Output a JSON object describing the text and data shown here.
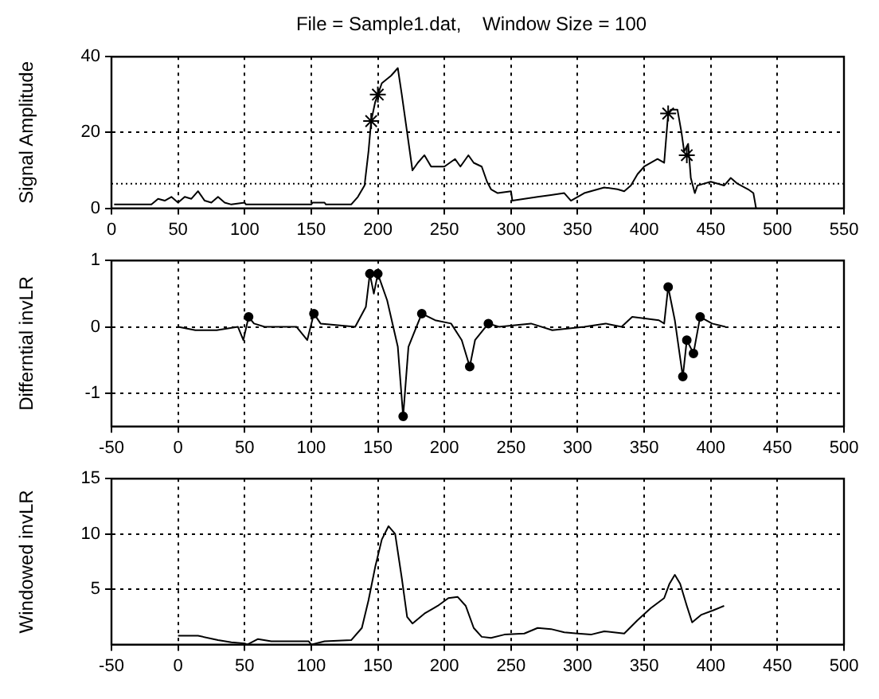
{
  "chart_data": [
    {
      "type": "line",
      "title": "File = Sample1.dat,    Window Size = 100",
      "ylabel": "Signal Amplitude",
      "xlim": [
        0,
        550
      ],
      "xticks": [
        0,
        50,
        100,
        150,
        200,
        250,
        300,
        350,
        400,
        450,
        500,
        550
      ],
      "ylim": [
        0,
        40
      ],
      "yticks": [
        0,
        20,
        40
      ],
      "grid": true,
      "legend": false,
      "ref_lines": [
        {
          "axis": "y",
          "value": 6.5,
          "color": "#000000",
          "line_style": "dotted"
        }
      ],
      "series": [
        {
          "color": "#000000",
          "marker": "none",
          "x": [
            2,
            30,
            35,
            40,
            45,
            50,
            55,
            60,
            65,
            70,
            75,
            80,
            85,
            90,
            100,
            101,
            150,
            151,
            160,
            161,
            180,
            185,
            190,
            193,
            195,
            198,
            200,
            203,
            210,
            215,
            218,
            222,
            226,
            230,
            235,
            240,
            250,
            258,
            262,
            268,
            272,
            278,
            282,
            285,
            290,
            300,
            301,
            310,
            320,
            330,
            340,
            345,
            350,
            355,
            370,
            380,
            385,
            390,
            395,
            400,
            405,
            410,
            415,
            418,
            420,
            425,
            428,
            430,
            433,
            435,
            438,
            440,
            445,
            450,
            460,
            465,
            470,
            478,
            482,
            484
          ],
          "values": [
            1,
            1,
            2.5,
            2,
            3,
            1.5,
            3,
            2.5,
            4.5,
            2,
            1.5,
            3,
            1.5,
            1,
            1.5,
            1,
            1,
            1.5,
            1.5,
            1,
            1,
            3,
            6,
            15,
            23,
            28,
            30,
            33,
            35,
            37,
            30,
            20,
            10,
            12,
            14,
            11,
            11,
            13,
            11,
            14,
            12,
            11,
            7,
            5,
            4,
            4.5,
            2,
            2.5,
            3,
            3.5,
            4,
            2,
            3,
            4,
            5.5,
            5,
            4.5,
            6,
            9,
            11,
            12,
            13,
            12,
            25,
            26,
            26,
            20,
            15,
            17,
            8,
            4,
            6,
            6.5,
            7,
            6,
            8,
            6.5,
            5,
            4,
            0
          ]
        },
        {
          "type": "scatter",
          "color": "#000000",
          "marker": "cross",
          "x": [
            195,
            200,
            418,
            432
          ],
          "values": [
            23,
            30,
            25,
            14
          ]
        }
      ]
    },
    {
      "type": "line",
      "ylabel": "Differntial invLR",
      "xlim": [
        -50,
        500
      ],
      "xticks": [
        -50,
        0,
        50,
        100,
        150,
        200,
        250,
        300,
        350,
        400,
        450,
        500
      ],
      "ylim": [
        -1.5,
        1
      ],
      "yticks": [
        -1,
        0,
        1
      ],
      "grid": true,
      "legend": false,
      "series": [
        {
          "color": "#000000",
          "marker": "none",
          "x": [
            0,
            13,
            29,
            45,
            49,
            53,
            57,
            65,
            89,
            97,
            102,
            107,
            133,
            141,
            144,
            147,
            150,
            157,
            165,
            169,
            173,
            177,
            183,
            193,
            205,
            213,
            219,
            223,
            233,
            241,
            265,
            281,
            305,
            321,
            333,
            341,
            361,
            365,
            368,
            373,
            379,
            382,
            387,
            392,
            401,
            411
          ],
          "values": [
            0,
            -0.05,
            -0.05,
            0,
            -0.2,
            0.15,
            0.05,
            0,
            0,
            -0.2,
            0.2,
            0.05,
            0,
            0.3,
            0.8,
            0.5,
            0.8,
            0.4,
            -0.3,
            -1.35,
            -0.3,
            -0.1,
            0.2,
            0.1,
            0.05,
            -0.2,
            -0.6,
            -0.2,
            0.05,
            0,
            0.05,
            -0.05,
            0,
            0.05,
            0,
            0.15,
            0.1,
            0.05,
            0.6,
            0.1,
            -0.75,
            -0.2,
            -0.4,
            0.15,
            0.05,
            0
          ]
        },
        {
          "type": "scatter",
          "color": "#000000",
          "marker": "circle",
          "x": [
            53,
            102,
            144,
            150,
            169,
            183,
            219,
            233,
            368,
            379,
            382,
            387,
            392
          ],
          "values": [
            0.15,
            0.2,
            0.8,
            0.8,
            -1.35,
            0.2,
            -0.6,
            0.05,
            0.6,
            -0.75,
            -0.2,
            -0.4,
            0.15
          ]
        }
      ]
    },
    {
      "type": "line",
      "ylabel": "Windowed invLR",
      "xlim": [
        -50,
        500
      ],
      "xticks": [
        -50,
        0,
        50,
        100,
        150,
        200,
        250,
        300,
        350,
        400,
        450,
        500
      ],
      "ylim": [
        0,
        15
      ],
      "yticks": [
        5,
        10,
        15
      ],
      "grid": true,
      "legend": false,
      "series": [
        {
          "color": "#000000",
          "marker": "none",
          "x": [
            0,
            15,
            30,
            40,
            50,
            52,
            60,
            70,
            98,
            100,
            110,
            130,
            138,
            143,
            148,
            153,
            158,
            163,
            168,
            172,
            176,
            185,
            195,
            203,
            210,
            216,
            222,
            228,
            235,
            245,
            260,
            270,
            280,
            290,
            300,
            310,
            320,
            335,
            345,
            355,
            365,
            369,
            373,
            377,
            382,
            386,
            393,
            402,
            410
          ],
          "values": [
            0.8,
            0.8,
            0.4,
            0.2,
            0.1,
            0,
            0.5,
            0.3,
            0.3,
            0,
            0.3,
            0.4,
            1.5,
            4,
            7,
            9.5,
            10.7,
            10,
            6,
            2.5,
            1.9,
            2.8,
            3.5,
            4.2,
            4.3,
            3.5,
            1.5,
            0.7,
            0.6,
            0.9,
            1,
            1.5,
            1.4,
            1.1,
            1,
            0.9,
            1.2,
            1,
            2.2,
            3.3,
            4.2,
            5.5,
            6.3,
            5.5,
            3.5,
            2,
            2.7,
            3.1,
            3.5
          ]
        }
      ]
    }
  ]
}
